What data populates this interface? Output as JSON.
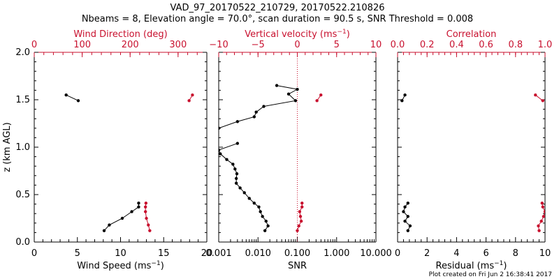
{
  "title": "VAD_97_20170522_210729, 20170522.210826",
  "subtitle": "Nbeams = 8, Elevation angle = 70.0°, scan duration = 90.5 s, SNR Threshold = 0.008",
  "footer": "Plot created on Fri Jun  2 16:38:41 2017",
  "colors": {
    "primary": "#000000",
    "secondary": "#c8102e"
  },
  "chart_data": [
    {
      "type": "line",
      "ylabel": "z (km AGL)",
      "ylim": [
        0,
        2
      ],
      "yticks": [
        "0.0",
        "0.5",
        "1.0",
        "1.5",
        "2.0"
      ],
      "bottom_axis": {
        "label": "Wind Speed (ms⁻¹)",
        "lim": [
          0,
          20
        ],
        "ticks": [
          "0",
          "5",
          "10",
          "15",
          "20"
        ]
      },
      "top_axis": {
        "label": "Wind Direction (deg)",
        "lim": [
          0,
          360
        ],
        "ticks": [
          "0",
          "100",
          "200",
          "300"
        ]
      },
      "series": [
        {
          "axis": "bottom",
          "color": "black",
          "segments": [
            [
              [
                8.1,
                0.12
              ],
              [
                8.7,
                0.18
              ],
              [
                10.2,
                0.25
              ],
              [
                11.3,
                0.32
              ],
              [
                12.1,
                0.37
              ],
              [
                12.1,
                0.41
              ]
            ],
            [
              [
                3.7,
                1.55
              ],
              [
                5.1,
                1.49
              ]
            ]
          ]
        },
        {
          "axis": "top",
          "color": "red",
          "segments": [
            [
              [
                241,
                0.12
              ],
              [
                238,
                0.18
              ],
              [
                234,
                0.25
              ],
              [
                232,
                0.32
              ],
              [
                232,
                0.37
              ],
              [
                233,
                0.41
              ]
            ],
            [
              [
                323,
                1.49
              ],
              [
                330,
                1.55
              ]
            ]
          ]
        }
      ]
    },
    {
      "type": "line",
      "ylim": [
        0,
        2
      ],
      "bottom_axis": {
        "label": "SNR",
        "scale": "log",
        "lim": [
          0.001,
          10
        ],
        "ticks": [
          "0.001",
          "0.010",
          "0.100",
          "1.000",
          "10.000"
        ]
      },
      "top_axis": {
        "label": "Vertical velocity (ms⁻¹)",
        "lim": [
          -10,
          10
        ],
        "ticks": [
          "−10",
          "−5",
          "0",
          "5",
          "10"
        ],
        "zero_line": "dotted"
      },
      "series": [
        {
          "axis": "bottom",
          "color": "black",
          "segments": [
            [
              [
                0.015,
                0.12
              ],
              [
                0.018,
                0.17
              ],
              [
                0.016,
                0.22
              ],
              [
                0.013,
                0.27
              ],
              [
                0.0115,
                0.32
              ],
              [
                0.0105,
                0.37
              ],
              [
                0.008,
                0.41
              ],
              [
                0.006,
                0.46
              ],
              [
                0.0045,
                0.52
              ],
              [
                0.0035,
                0.57
              ],
              [
                0.0028,
                0.62
              ],
              [
                0.0028,
                0.67
              ],
              [
                0.0029,
                0.72
              ],
              [
                0.0026,
                0.77
              ],
              [
                0.0023,
                0.82
              ],
              [
                0.0016,
                0.87
              ],
              [
                0.0011,
                0.93
              ],
              [
                0.001,
                0.97
              ],
              [
                0.003,
                1.04
              ]
            ],
            [
              [
                0.001,
                1.2
              ],
              [
                0.003,
                1.27
              ],
              [
                0.008,
                1.32
              ],
              [
                0.009,
                1.37
              ],
              [
                0.014,
                1.43
              ],
              [
                0.09,
                1.49
              ],
              [
                0.06,
                1.56
              ],
              [
                0.1,
                1.61
              ],
              [
                0.03,
                1.65
              ]
            ]
          ]
        },
        {
          "axis": "top",
          "color": "red",
          "segments": [
            [
              [
                0.0,
                0.12
              ],
              [
                0.2,
                0.17
              ],
              [
                0.5,
                0.22
              ],
              [
                0.4,
                0.27
              ],
              [
                0.3,
                0.32
              ],
              [
                0.6,
                0.37
              ],
              [
                0.6,
                0.41
              ]
            ],
            [
              [
                2.5,
                1.49
              ],
              [
                3.0,
                1.55
              ]
            ]
          ]
        }
      ]
    },
    {
      "type": "line",
      "ylim": [
        0,
        2
      ],
      "bottom_axis": {
        "label": "Residual (ms⁻¹)",
        "lim": [
          0,
          10
        ],
        "ticks": [
          "0",
          "2",
          "4",
          "6",
          "8",
          "10"
        ]
      },
      "top_axis": {
        "label": "Correlation",
        "lim": [
          0,
          1
        ],
        "ticks": [
          "0.0",
          "0.2",
          "0.4",
          "0.6",
          "0.8",
          "1.0"
        ]
      },
      "series": [
        {
          "axis": "bottom",
          "color": "black",
          "segments": [
            [
              [
                0.7,
                0.12
              ],
              [
                0.85,
                0.17
              ],
              [
                0.5,
                0.22
              ],
              [
                0.7,
                0.27
              ],
              [
                0.4,
                0.32
              ],
              [
                0.5,
                0.37
              ],
              [
                0.7,
                0.41
              ]
            ],
            [
              [
                0.3,
                1.49
              ],
              [
                0.5,
                1.55
              ]
            ]
          ]
        },
        {
          "axis": "top",
          "color": "red",
          "segments": [
            [
              [
                0.96,
                0.12
              ],
              [
                0.955,
                0.17
              ],
              [
                0.975,
                0.22
              ],
              [
                0.99,
                0.27
              ],
              [
                1.0,
                0.32
              ],
              [
                0.985,
                0.37
              ],
              [
                0.98,
                0.41
              ]
            ],
            [
              [
                0.935,
                1.55
              ],
              [
                0.985,
                1.49
              ]
            ]
          ]
        }
      ]
    }
  ]
}
